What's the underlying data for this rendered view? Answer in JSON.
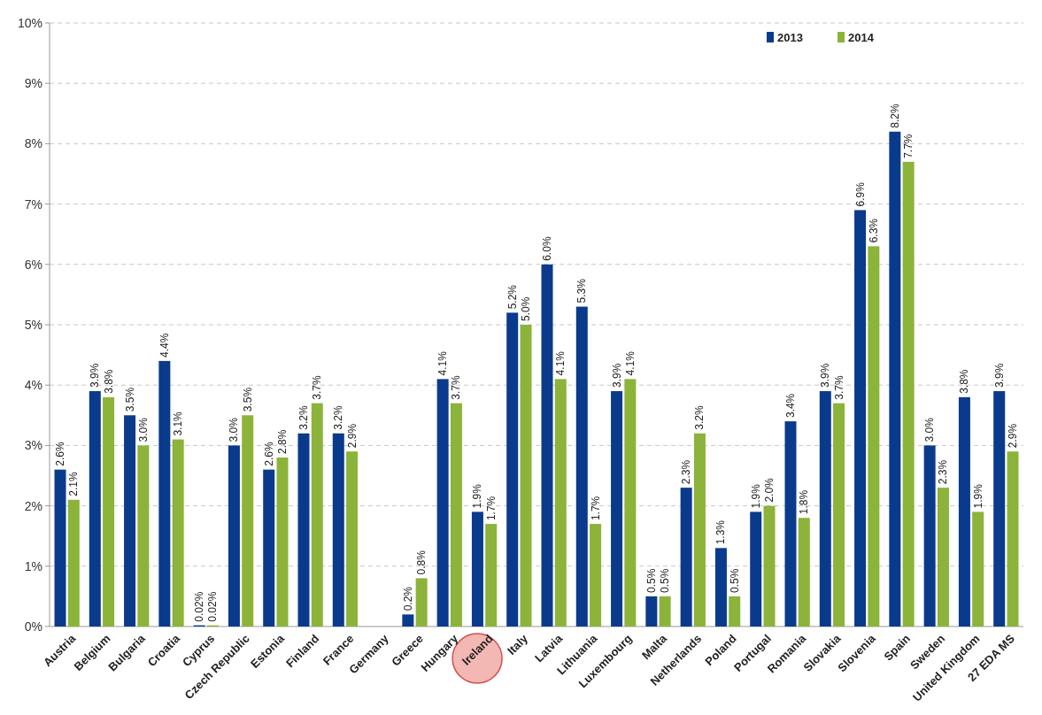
{
  "chart_data": {
    "type": "bar",
    "categories": [
      "Austria",
      "Belgium",
      "Bulgaria",
      "Croatia",
      "Cyprus",
      "Czech Republic",
      "Estonia",
      "Finland",
      "France",
      "Germany",
      "Greece",
      "Hungary",
      "Ireland",
      "Italy",
      "Latvia",
      "Lithuania",
      "Luxembourg",
      "Malta",
      "Netherlands",
      "Poland",
      "Portugal",
      "Romania",
      "Slovakia",
      "Slovenia",
      "Spain",
      "Sweden",
      "United Kingdom",
      "27 EDA MS"
    ],
    "series": [
      {
        "name": "2013",
        "color": "#0a3a8c",
        "values": [
          2.6,
          3.9,
          3.5,
          4.4,
          0.02,
          3.0,
          2.6,
          3.2,
          3.2,
          null,
          0.2,
          4.1,
          1.9,
          5.2,
          6.0,
          5.3,
          3.9,
          0.5,
          2.3,
          1.3,
          1.9,
          3.4,
          3.9,
          6.9,
          8.2,
          3.0,
          3.8,
          3.9
        ],
        "value_labels": [
          "2.6%",
          "3.9%",
          "3.5%",
          "4.4%",
          "0.02%",
          "3.0%",
          "2.6%",
          "3.2%",
          "3.2%",
          null,
          "0.2%",
          "4.1%",
          "1.9%",
          "5.2%",
          "6.0%",
          "5.3%",
          "3.9%",
          "0.5%",
          "2.3%",
          "1.3%",
          "1.9%",
          "3.4%",
          "3.9%",
          "6.9%",
          "8.2%",
          "3.0%",
          "3.8%",
          "3.9%"
        ]
      },
      {
        "name": "2014",
        "color": "#8cb33a",
        "values": [
          2.1,
          3.8,
          3.0,
          3.1,
          0.02,
          3.5,
          2.8,
          3.7,
          2.9,
          null,
          0.8,
          3.7,
          1.7,
          5.0,
          4.1,
          1.7,
          4.1,
          0.5,
          3.2,
          0.5,
          2.0,
          1.8,
          3.7,
          6.3,
          7.7,
          2.3,
          1.9,
          2.9
        ],
        "value_labels": [
          "2.1%",
          "3.8%",
          "3.0%",
          "3.1%",
          "0.02%",
          "3.5%",
          "2.8%",
          "3.7%",
          "2.9%",
          null,
          "0.8%",
          "3.7%",
          "1.7%",
          "5.0%",
          "4.1%",
          "1.7%",
          "4.1%",
          "0.5%",
          "3.2%",
          "0.5%",
          "2.0%",
          "1.8%",
          "3.7%",
          "6.3%",
          "7.7%",
          "2.3%",
          "1.9%",
          "2.9%"
        ]
      }
    ],
    "ylim": [
      0,
      10
    ],
    "yticks": [
      {
        "value": 0,
        "label": "0%"
      },
      {
        "value": 1,
        "label": "1%"
      },
      {
        "value": 2,
        "label": "2%"
      },
      {
        "value": 3,
        "label": "3%"
      },
      {
        "value": 4,
        "label": "4%"
      },
      {
        "value": 5,
        "label": "5%"
      },
      {
        "value": 6,
        "label": "6%"
      },
      {
        "value": 7,
        "label": "7%"
      },
      {
        "value": 8,
        "label": "8%"
      },
      {
        "value": 9,
        "label": "9%"
      },
      {
        "value": 10,
        "label": "10%"
      }
    ],
    "grid": "y",
    "legend": "top right"
  }
}
